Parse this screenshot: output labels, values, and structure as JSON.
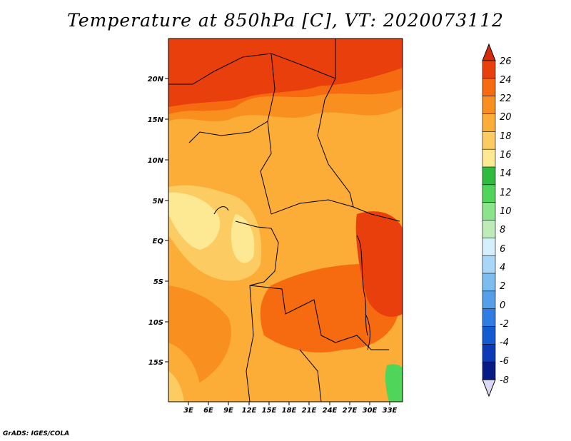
{
  "title": "Temperature at 850hPa [C], VT: 2020073112",
  "credit": "GrADS: IGES/COLA",
  "map": {
    "lat_ticks": [
      "20N",
      "15N",
      "10N",
      "5N",
      "EQ",
      "5S",
      "10S",
      "15S"
    ],
    "lon_ticks": [
      "3E",
      "6E",
      "9E",
      "12E",
      "15E",
      "18E",
      "21E",
      "24E",
      "27E",
      "30E",
      "33E"
    ]
  },
  "colorbar": {
    "labels": [
      "26",
      "24",
      "22",
      "20",
      "18",
      "16",
      "14",
      "12",
      "10",
      "8",
      "6",
      "4",
      "2",
      "0",
      "-2",
      "-4",
      "-6",
      "-8"
    ],
    "top_color": "#d62a09",
    "bottom_color": "#dcd9f5",
    "colors": [
      "#e83f0d",
      "#f66a10",
      "#f98f1f",
      "#fbad38",
      "#fccc62",
      "#fde894",
      "#2fbb3e",
      "#4fd55a",
      "#8be38a",
      "#bdecb8",
      "#d6effd",
      "#a8d6f8",
      "#7dbcef",
      "#549eea",
      "#2f7de2",
      "#145bd2",
      "#0a3ab6",
      "#071b84"
    ]
  }
}
